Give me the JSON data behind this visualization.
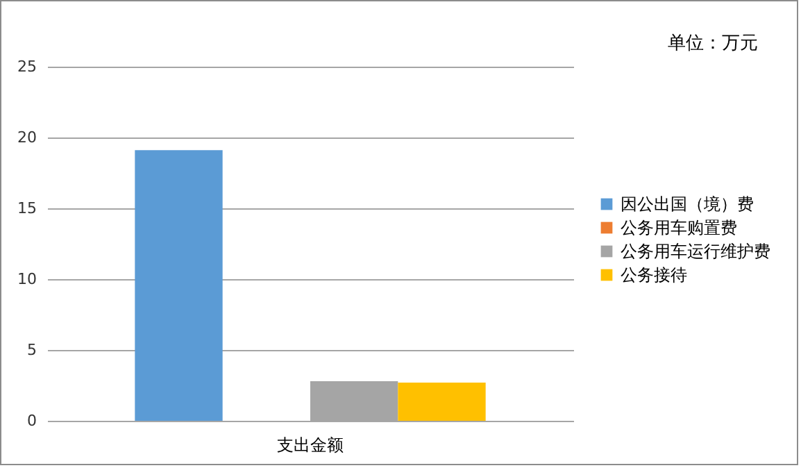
{
  "chart_data": {
    "type": "bar",
    "categories": [
      "支出金额"
    ],
    "series": [
      {
        "name": "因公出国（境）费",
        "color": "#5b9bd5",
        "values": [
          19.1
        ]
      },
      {
        "name": "公务用车购置费",
        "color": "#ed7d31",
        "values": [
          0
        ]
      },
      {
        "name": "公务用车运行维护费",
        "color": "#a5a5a5",
        "values": [
          2.8
        ]
      },
      {
        "name": "公务接待",
        "color": "#ffc000",
        "values": [
          2.7
        ]
      }
    ],
    "ylim": [
      0,
      25
    ],
    "yticks": [
      0,
      5,
      10,
      15,
      20,
      25
    ],
    "grid": "y",
    "legend": "right",
    "annotations": [
      "单位：万元"
    ]
  }
}
